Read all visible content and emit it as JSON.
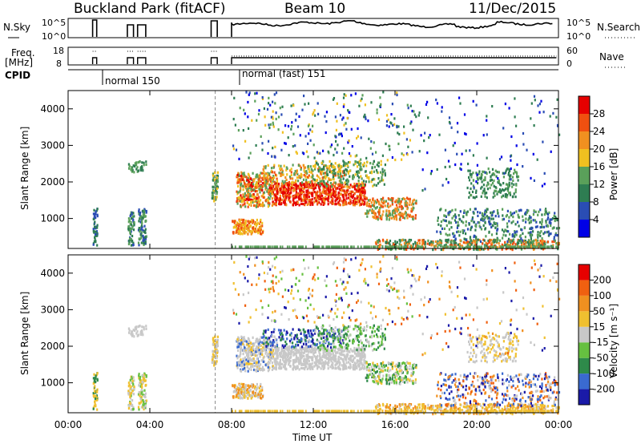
{
  "header": {
    "site": "Buckland Park (fitACF)",
    "beam": "Beam 10",
    "date": "11/Dec/2015"
  },
  "summary_panel": {
    "nsky_label_line1": "N.Sky",
    "nsky_label_line2": "",
    "nsky_ticks": [
      "10^5",
      "10^0"
    ],
    "nsearch_label": "N.Search",
    "freq_label_line1": "Freq.",
    "freq_label_line2": "[MHz]",
    "freq_ticks": [
      "18",
      "8"
    ],
    "nave_label": "Nave",
    "nave_ticks": [
      "60",
      "0"
    ],
    "cpid_label": "CPID",
    "cpid_segments": [
      "normal 150",
      "normal (fast) 151"
    ]
  },
  "power_panel": {
    "ylabel": "Slant Range [km]",
    "yticks": [
      "4000",
      "3000",
      "2000",
      "1000"
    ],
    "colorbar_label": "Power [dB]",
    "colorbar_ticks": [
      "28",
      "24",
      "20",
      "16",
      "12",
      "8",
      "4"
    ],
    "colors": [
      "#0000e6",
      "#2a4db4",
      "#2e7d52",
      "#5aa05a",
      "#f0c020",
      "#f09020",
      "#f05010",
      "#e60000"
    ]
  },
  "velocity_panel": {
    "ylabel": "Slant Range [km]",
    "yticks": [
      "4000",
      "3000",
      "2000",
      "1000"
    ],
    "colorbar_label": "Velocity [m s⁻¹]",
    "colorbar_ticks": [
      "200",
      "100",
      "50",
      "15",
      "-15",
      "-50",
      "-100",
      "-200"
    ],
    "colors": [
      "#1a1aa8",
      "#3a6ad0",
      "#2e8a4a",
      "#66c040",
      "#c8c8c8",
      "#f0c030",
      "#f09020",
      "#f06010",
      "#e60000"
    ]
  },
  "time_axis": {
    "ticks": [
      "00:00",
      "04:00",
      "08:00",
      "12:00",
      "16:00",
      "20:00",
      "00:00"
    ],
    "label": "Time UT"
  },
  "chart_data": {
    "type": "heatmap",
    "title": "Buckland Park (fitACF) Beam 10 11/Dec/2015",
    "xlabel": "Time UT",
    "ylabel": "Slant Range [km]",
    "x_range_hours": [
      0,
      24
    ],
    "y_range_km": [
      180,
      4500
    ],
    "panels": [
      {
        "name": "Power",
        "colorbar_label": "Power [dB]",
        "colorbar_range": [
          0,
          30
        ]
      },
      {
        "name": "Velocity",
        "colorbar_label": "Velocity [m s⁻¹]",
        "colorbar_range": [
          -200,
          200
        ]
      }
    ],
    "cpid": [
      {
        "label": "normal 150",
        "start_hour": 1.2
      },
      {
        "label": "normal (fast) 151",
        "start_hour": 8.0
      }
    ]
  }
}
